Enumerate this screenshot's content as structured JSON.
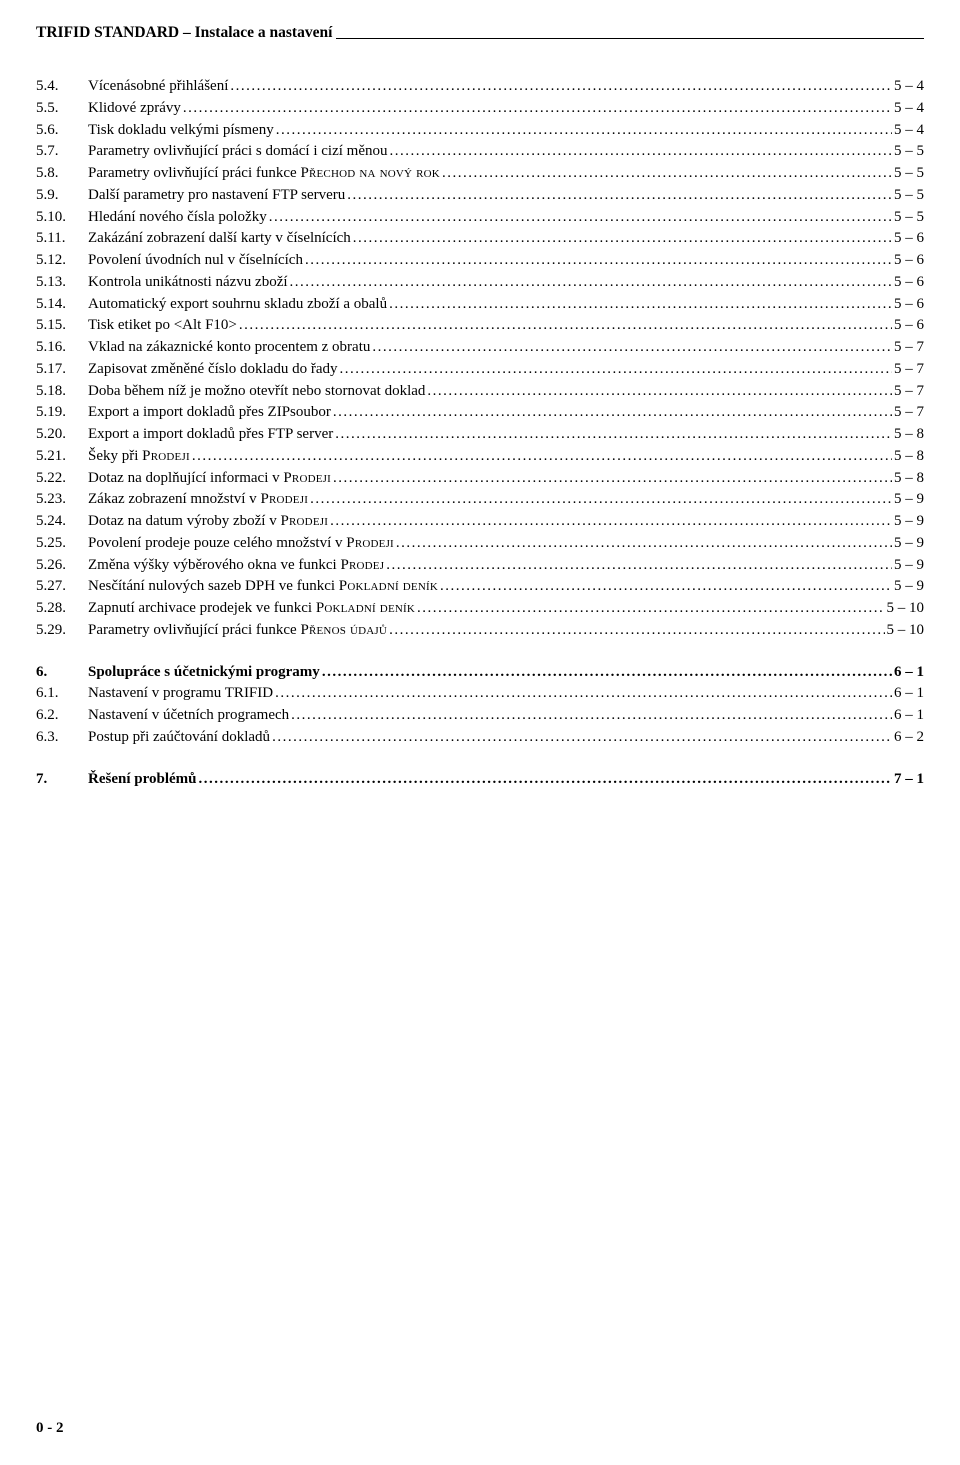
{
  "header": "TRIFID STANDARD – Instalace a nastavení",
  "footer": "0 - 2",
  "toc": [
    {
      "num": "5.4.",
      "label": "Vícenásobné přihlášení",
      "page": "5 – 4",
      "bold": false,
      "sc": false,
      "gapBefore": false
    },
    {
      "num": "5.5.",
      "label": "Klidové zprávy",
      "page": "5 – 4",
      "bold": false,
      "sc": false,
      "gapBefore": false
    },
    {
      "num": "5.6.",
      "label": "Tisk dokladu velkými písmeny",
      "page": "5 – 4",
      "bold": false,
      "sc": false,
      "gapBefore": false
    },
    {
      "num": "5.7.",
      "label": "Parametry ovlivňující práci s domácí i cizí měnou",
      "page": "5 – 5",
      "bold": false,
      "sc": false,
      "gapBefore": false
    },
    {
      "num": "5.8.",
      "label_parts": [
        {
          "text": "Parametry ovlivňující práci funkce ",
          "sc": false
        },
        {
          "text": "Přechod na nový rok",
          "sc": true
        }
      ],
      "page": "5 – 5",
      "bold": false,
      "gapBefore": false
    },
    {
      "num": "5.9.",
      "label": "Další parametry pro nastavení FTP serveru",
      "page": "5 – 5",
      "bold": false,
      "sc": false,
      "gapBefore": false
    },
    {
      "num": "5.10.",
      "label": "Hledání nového čísla položky",
      "page": "5 – 5",
      "bold": false,
      "sc": false,
      "gapBefore": false
    },
    {
      "num": "5.11.",
      "label": "Zakázání zobrazení další karty v číselnících",
      "page": "5 – 6",
      "bold": false,
      "sc": false,
      "gapBefore": false
    },
    {
      "num": "5.12.",
      "label": "Povolení úvodních nul v číselnících",
      "page": "5 – 6",
      "bold": false,
      "sc": false,
      "gapBefore": false
    },
    {
      "num": "5.13.",
      "label": "Kontrola unikátnosti názvu zboží",
      "page": "5 – 6",
      "bold": false,
      "sc": false,
      "gapBefore": false
    },
    {
      "num": "5.14.",
      "label": "Automatický export souhrnu skladu zboží a obalů",
      "page": "5 – 6",
      "bold": false,
      "sc": false,
      "gapBefore": false
    },
    {
      "num": "5.15.",
      "label": "Tisk etiket po <Alt F10>",
      "page": "5 – 6",
      "bold": false,
      "sc": false,
      "gapBefore": false
    },
    {
      "num": "5.16.",
      "label": "Vklad na zákaznické konto procentem z obratu",
      "page": "5 – 7",
      "bold": false,
      "sc": false,
      "gapBefore": false
    },
    {
      "num": "5.17.",
      "label": "Zapisovat změněné číslo dokladu do řady",
      "page": "5 – 7",
      "bold": false,
      "sc": false,
      "gapBefore": false
    },
    {
      "num": "5.18.",
      "label": "Doba během níž je možno otevřít nebo stornovat doklad",
      "page": "5 – 7",
      "bold": false,
      "sc": false,
      "gapBefore": false
    },
    {
      "num": "5.19.",
      "label": "Export a import dokladů přes ZIPsoubor",
      "page": "5 – 7",
      "bold": false,
      "sc": false,
      "gapBefore": false
    },
    {
      "num": "5.20.",
      "label": "Export a import dokladů přes FTP server",
      "page": "5 – 8",
      "bold": false,
      "sc": false,
      "gapBefore": false
    },
    {
      "num": "5.21.",
      "label_parts": [
        {
          "text": "Šeky při ",
          "sc": false
        },
        {
          "text": "Prodeji",
          "sc": true
        }
      ],
      "page": "5 – 8",
      "bold": false,
      "gapBefore": false
    },
    {
      "num": "5.22.",
      "label_parts": [
        {
          "text": "Dotaz na doplňující informaci v ",
          "sc": false
        },
        {
          "text": "Prodeji",
          "sc": true
        }
      ],
      "page": "5 – 8",
      "bold": false,
      "gapBefore": false
    },
    {
      "num": "5.23.",
      "label_parts": [
        {
          "text": "Zákaz zobrazení množství v ",
          "sc": false
        },
        {
          "text": "Prodeji",
          "sc": true
        }
      ],
      "page": "5 – 9",
      "bold": false,
      "gapBefore": false
    },
    {
      "num": "5.24.",
      "label_parts": [
        {
          "text": "Dotaz na datum výroby zboží v ",
          "sc": false
        },
        {
          "text": "Prodeji",
          "sc": true
        }
      ],
      "page": "5 – 9",
      "bold": false,
      "gapBefore": false
    },
    {
      "num": "5.25.",
      "label_parts": [
        {
          "text": "Povolení prodeje pouze celého množství v ",
          "sc": false
        },
        {
          "text": "Prodeji",
          "sc": true
        }
      ],
      "page": "5 – 9",
      "bold": false,
      "gapBefore": false
    },
    {
      "num": "5.26.",
      "label_parts": [
        {
          "text": "Změna výšky výběrového okna ve funkci ",
          "sc": false
        },
        {
          "text": "Prodej",
          "sc": true
        }
      ],
      "page": "5 – 9",
      "bold": false,
      "gapBefore": false
    },
    {
      "num": "5.27.",
      "label_parts": [
        {
          "text": "Nesčítání nulových sazeb DPH ve funkci ",
          "sc": false
        },
        {
          "text": "Pokladní deník",
          "sc": true
        }
      ],
      "page": "5 – 9",
      "bold": false,
      "gapBefore": false
    },
    {
      "num": "5.28.",
      "label_parts": [
        {
          "text": "Zapnutí archivace prodejek ve funkci ",
          "sc": false
        },
        {
          "text": "Pokladní deník",
          "sc": true
        }
      ],
      "page": "5 – 10",
      "bold": false,
      "gapBefore": false
    },
    {
      "num": "5.29.",
      "label_parts": [
        {
          "text": "Parametry ovlivňující práci funkce ",
          "sc": false
        },
        {
          "text": "Přenos údajů",
          "sc": true
        }
      ],
      "page": "5 – 10",
      "bold": false,
      "gapBefore": false
    },
    {
      "num": "6.",
      "label": "Spolupráce s účetnickými programy",
      "page": "6 – 1",
      "bold": true,
      "sc": false,
      "gapBefore": true
    },
    {
      "num": "6.1.",
      "label": "Nastavení v programu TRIFID",
      "page": "6 – 1",
      "bold": false,
      "sc": false,
      "gapBefore": false
    },
    {
      "num": "6.2.",
      "label": "Nastavení v účetních programech",
      "page": "6 – 1",
      "bold": false,
      "sc": false,
      "gapBefore": false
    },
    {
      "num": "6.3.",
      "label": "Postup při zaúčtování dokladů",
      "page": "6 – 2",
      "bold": false,
      "sc": false,
      "gapBefore": false
    },
    {
      "num": "7.",
      "label": "Řešení problémů",
      "page": "7 – 1",
      "bold": true,
      "sc": false,
      "gapBefore": true
    }
  ]
}
